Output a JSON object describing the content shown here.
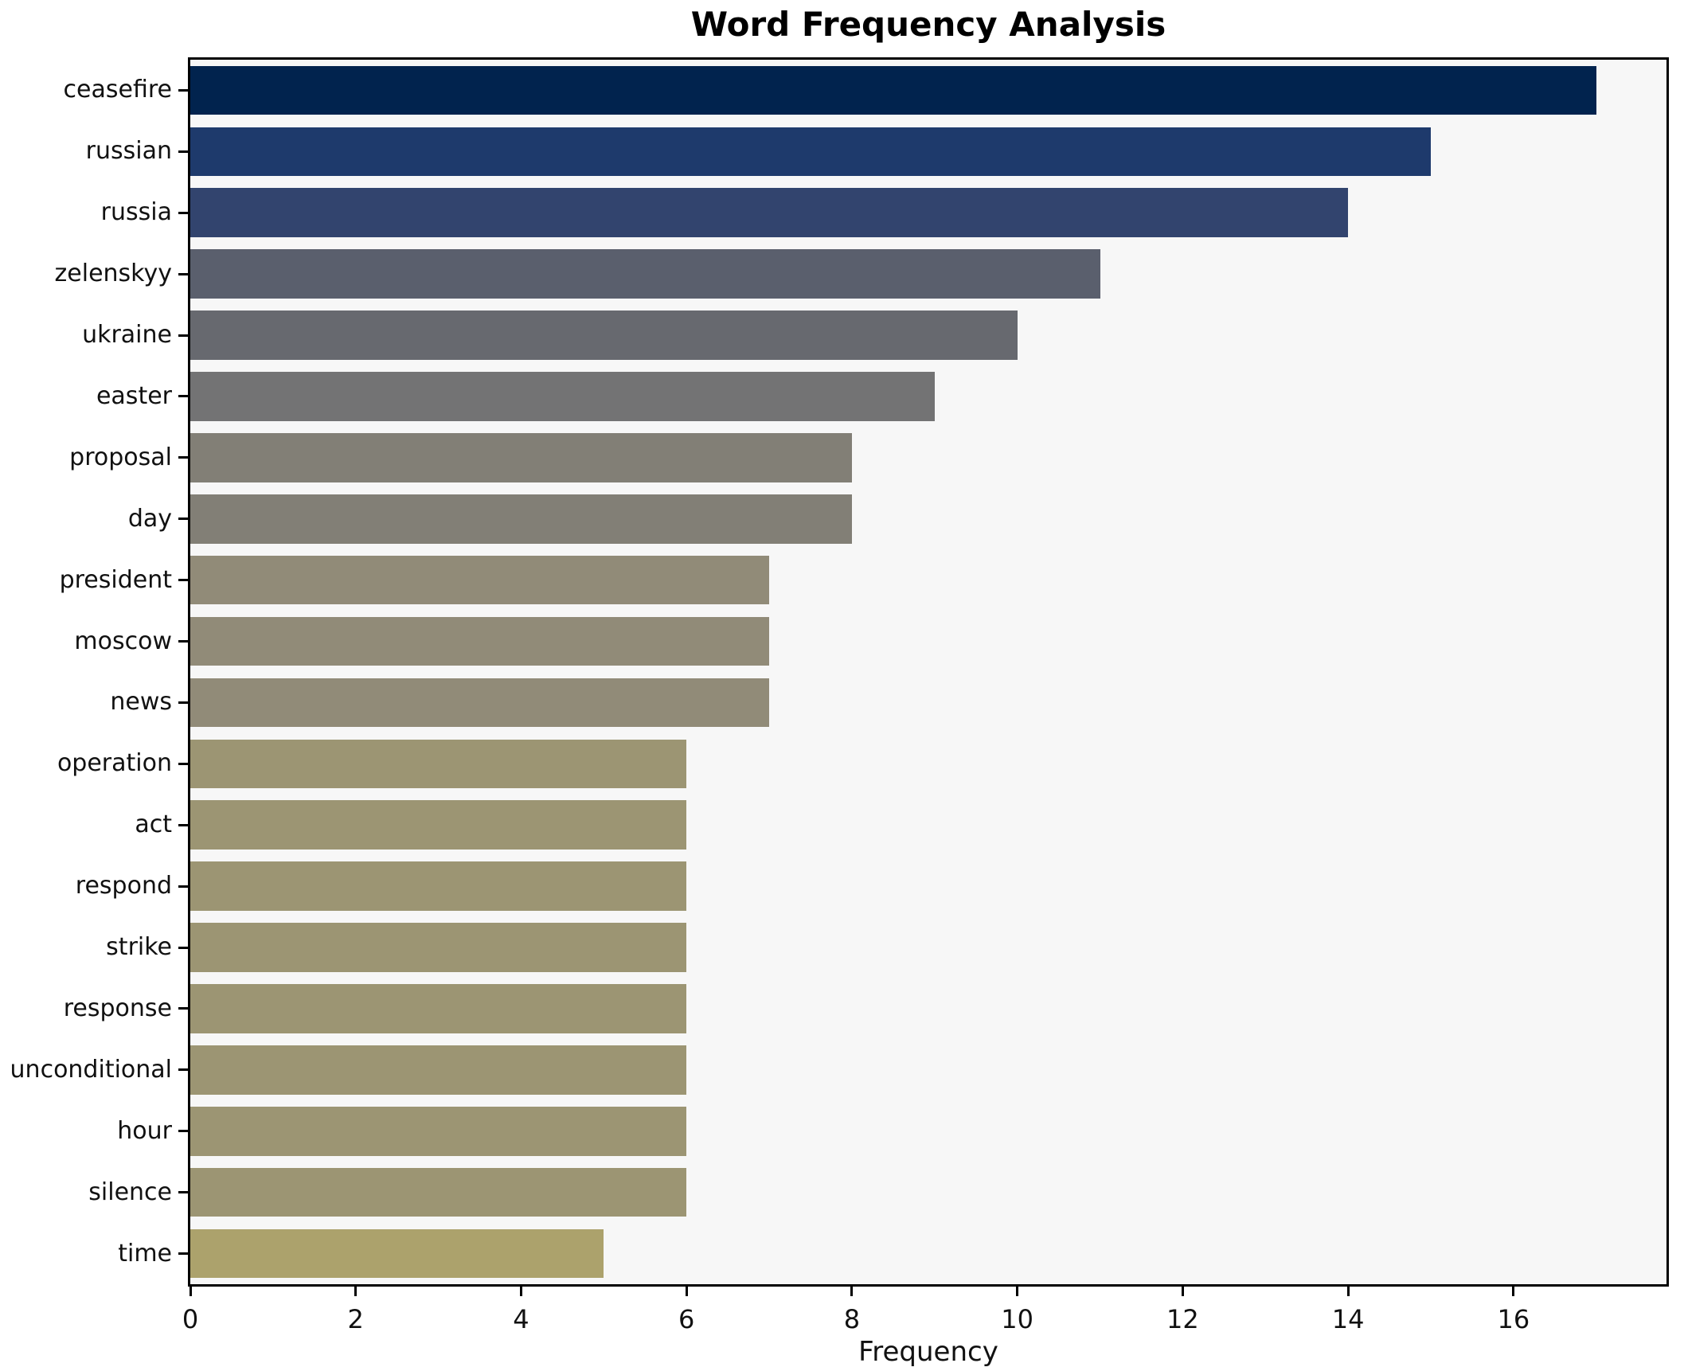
{
  "title": "Word Frequency Analysis",
  "chart_data": {
    "type": "bar",
    "orientation": "horizontal",
    "title": "Word Frequency Analysis",
    "xlabel": "Frequency",
    "ylabel": "",
    "categories": [
      "ceasefire",
      "russian",
      "russia",
      "zelenskyy",
      "ukraine",
      "easter",
      "proposal",
      "day",
      "president",
      "moscow",
      "news",
      "operation",
      "act",
      "respond",
      "strike",
      "response",
      "unconditional",
      "hour",
      "silence",
      "time"
    ],
    "values": [
      17,
      15,
      14,
      11,
      10,
      9,
      8,
      8,
      7,
      7,
      7,
      6,
      6,
      6,
      6,
      6,
      6,
      6,
      6,
      5
    ],
    "bar_colors": [
      "#01234e",
      "#1e3a6c",
      "#32446e",
      "#5a5f6d",
      "#67696f",
      "#737374",
      "#827f76",
      "#827f76",
      "#918b78",
      "#918b78",
      "#918b78",
      "#9c9573",
      "#9c9573",
      "#9c9573",
      "#9c9573",
      "#9c9573",
      "#9c9573",
      "#9c9573",
      "#9c9573",
      "#aca26c"
    ],
    "xticks": [
      "0",
      "2",
      "4",
      "6",
      "8",
      "10",
      "12",
      "14",
      "16"
    ],
    "xtick_values": [
      0,
      2,
      4,
      6,
      8,
      10,
      12,
      14,
      16
    ],
    "xlim": [
      0,
      17.85
    ],
    "grid": false,
    "legend": false,
    "plot_bg_color": "#f7f7f7",
    "figure_bg_color": "#ffffff",
    "spine_color": "#000000"
  }
}
